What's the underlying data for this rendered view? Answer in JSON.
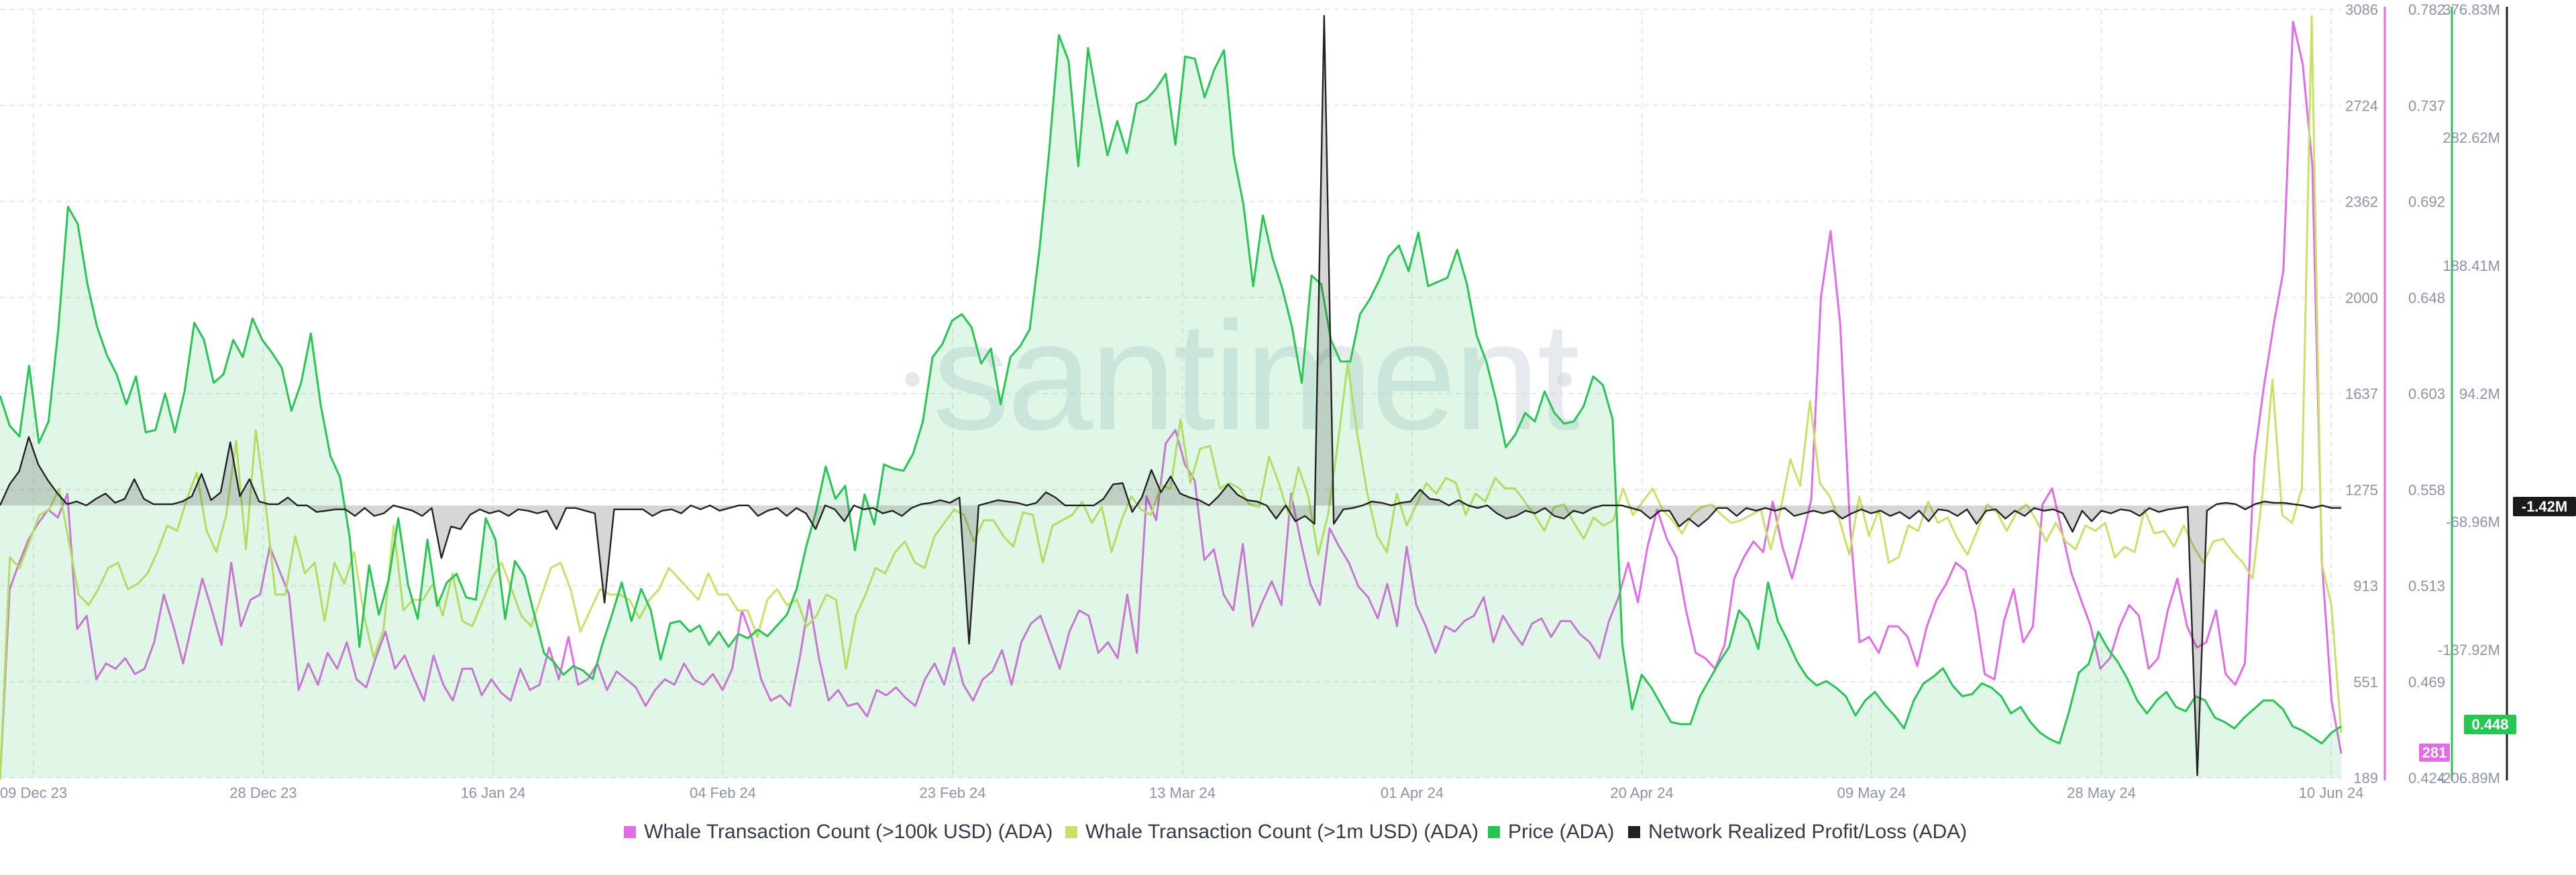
{
  "watermark": "santiment",
  "badges": {
    "whale100k": "281",
    "price": "0.448",
    "pnl": "-1.42M"
  },
  "legend": [
    {
      "label": "Whale Transaction Count (>100k USD) (ADA)",
      "color": "#e26be7"
    },
    {
      "label": "Whale Transaction Count (>1m USD) (ADA)",
      "color": "#c9e265"
    },
    {
      "label": "Price (ADA)",
      "color": "#26c653"
    },
    {
      "label": "Network Realized Profit/Loss (ADA)",
      "color": "#222222"
    }
  ],
  "chart_data": {
    "type": "line",
    "x_tick_labels": [
      "09 Dec 23",
      "28 Dec 23",
      "16 Jan 24",
      "04 Feb 24",
      "23 Feb 24",
      "13 Mar 24",
      "01 Apr 24",
      "20 Apr 24",
      "09 May 24",
      "28 May 24",
      "10 Jun 24"
    ],
    "y_axes": [
      {
        "id": "whale_count",
        "color": "#e26be7",
        "range": [
          189,
          3086
        ],
        "ticks": [
          "3086",
          "2724",
          "2362",
          "2000",
          "1637",
          "1275",
          "913",
          "551",
          "189"
        ]
      },
      {
        "id": "price",
        "color": "#26c653",
        "range": [
          0.424,
          0.782
        ],
        "ticks": [
          "0.782",
          "0.737",
          "0.692",
          "0.648",
          "0.603",
          "0.558",
          "0.513",
          "0.469",
          "0.424"
        ]
      },
      {
        "id": "pnl",
        "color": "#222222",
        "range": [
          -206.89,
          376.83
        ],
        "unit": "M",
        "ticks": [
          "376.83M",
          "282.62M",
          "188.41M",
          "94.2M",
          "-68.96M",
          "-137.92M",
          "-206.89M"
        ]
      }
    ],
    "series": [
      {
        "name": "Whale Transaction Count (>100k USD) (ADA)",
        "axis": "whale_count",
        "color": "#e26be7",
        "values": [
          180,
          900,
          1000,
          1090,
          1150,
          1200,
          1170,
          1260,
          750,
          800,
          560,
          620,
          600,
          640,
          580,
          600,
          700,
          880,
          760,
          620,
          780,
          940,
          820,
          690,
          1000,
          760,
          860,
          880,
          1060,
          970,
          880,
          520,
          620,
          540,
          660,
          600,
          700,
          560,
          530,
          640,
          740,
          600,
          650,
          560,
          480,
          650,
          540,
          480,
          600,
          600,
          500,
          560,
          510,
          480,
          600,
          520,
          540,
          680,
          560,
          720,
          540,
          560,
          620,
          520,
          590,
          560,
          530,
          460,
          520,
          560,
          540,
          620,
          560,
          540,
          580,
          520,
          600,
          820,
          720,
          560,
          480,
          500,
          460,
          640,
          860,
          640,
          480,
          520,
          460,
          470,
          420,
          520,
          500,
          530,
          490,
          460,
          560,
          620,
          540,
          680,
          540,
          480,
          560,
          590,
          670,
          540,
          700,
          770,
          800,
          700,
          600,
          740,
          820,
          800,
          660,
          700,
          640,
          880,
          660,
          1250,
          1160,
          1450,
          1500,
          1370,
          1310,
          1010,
          1050,
          880,
          820,
          1070,
          760,
          850,
          930,
          840,
          1260,
          1080,
          920,
          840,
          1130,
          1060,
          1000,
          910,
          870,
          790,
          920,
          760,
          1060,
          840,
          760,
          660,
          760,
          740,
          780,
          800,
          870,
          700,
          800,
          740,
          690,
          770,
          790,
          720,
          780,
          780,
          730,
          700,
          640,
          780,
          870,
          1000,
          850,
          1060,
          1200,
          1090,
          1020,
          820,
          660,
          640,
          600,
          690,
          940,
          1020,
          1080,
          1040,
          1230,
          1060,
          940,
          1080,
          1240,
          2000,
          2250,
          1900,
          1150,
          700,
          720,
          660,
          760,
          760,
          720,
          610,
          760,
          860,
          920,
          1000,
          970,
          820,
          580,
          560,
          780,
          900,
          700,
          760,
          1220,
          1280,
          1120,
          960,
          860,
          760,
          600,
          640,
          760,
          840,
          800,
          600,
          640,
          820,
          940,
          760,
          680,
          700,
          820,
          580,
          540,
          620,
          1400,
          1670,
          1900,
          2100,
          3040,
          2880,
          2500,
          1000,
          480,
          280
        ],
        "tag": "whale100k"
      },
      {
        "name": "Whale Transaction Count (>1m USD) (ADA)",
        "axis": "whale_count",
        "color": "#c9e265",
        "values": [
          180,
          1020,
          980,
          1080,
          1180,
          1200,
          1280,
          1080,
          880,
          840,
          900,
          980,
          1000,
          900,
          920,
          960,
          1040,
          1140,
          1120,
          1240,
          1340,
          1120,
          1040,
          1180,
          1460,
          1050,
          1500,
          1220,
          880,
          880,
          1100,
          960,
          1000,
          780,
          1000,
          920,
          1040,
          800,
          640,
          750,
          1140,
          820,
          860,
          860,
          920,
          800,
          960,
          780,
          760,
          850,
          940,
          1000,
          900,
          800,
          760,
          870,
          980,
          1000,
          900,
          740,
          820,
          900,
          880,
          880,
          860,
          790,
          860,
          900,
          980,
          940,
          900,
          860,
          960,
          880,
          880,
          820,
          820,
          720,
          860,
          900,
          840,
          860,
          760,
          800,
          880,
          860,
          600,
          800,
          880,
          980,
          960,
          1040,
          1080,
          1000,
          980,
          1100,
          1150,
          1200,
          1180,
          1080,
          1160,
          1160,
          1100,
          1060,
          1190,
          1180,
          1000,
          1140,
          1160,
          1180,
          1230,
          1150,
          1210,
          1040,
          1160,
          1250,
          1200,
          1180,
          1290,
          1280,
          1540,
          1300,
          1430,
          1440,
          1280,
          1300,
          1280,
          1220,
          1210,
          1400,
          1300,
          1180,
          1360,
          1250,
          1030,
          1180,
          1450,
          1750,
          1480,
          1260,
          1100,
          1040,
          1260,
          1140,
          1220,
          1300,
          1260,
          1320,
          1300,
          1180,
          1260,
          1230,
          1320,
          1280,
          1280,
          1230,
          1180,
          1120,
          1210,
          1220,
          1150,
          1090,
          1170,
          1140,
          1160,
          1280,
          1180,
          1230,
          1280,
          1200,
          1160,
          1110,
          1180,
          1210,
          1220,
          1180,
          1150,
          1160,
          1180,
          1200,
          1050,
          1200,
          1390,
          1290,
          1610,
          1300,
          1250,
          1160,
          1030,
          1250,
          1100,
          1200,
          1000,
          1020,
          1140,
          1120,
          1230,
          1150,
          1170,
          1090,
          1030,
          1120,
          1220,
          1190,
          1120,
          1190,
          1220,
          1160,
          1080,
          1150,
          1080,
          1050,
          1140,
          1120,
          1150,
          1020,
          1060,
          1040,
          1200,
          1110,
          1120,
          1060,
          1140,
          1060,
          1000,
          1080,
          1090,
          1040,
          1000,
          940,
          1260,
          1690,
          1180,
          1150,
          1280,
          3060,
          1000,
          840,
          360
        ]
      },
      {
        "name": "Price (ADA)",
        "axis": "price",
        "color": "#26c653",
        "fill": true,
        "values": [
          0.602,
          0.588,
          0.583,
          0.616,
          0.58,
          0.59,
          0.633,
          0.69,
          0.682,
          0.654,
          0.634,
          0.621,
          0.612,
          0.598,
          0.611,
          0.585,
          0.586,
          0.603,
          0.585,
          0.604,
          0.636,
          0.628,
          0.608,
          0.612,
          0.628,
          0.62,
          0.638,
          0.628,
          0.622,
          0.615,
          0.595,
          0.608,
          0.631,
          0.598,
          0.574,
          0.564,
          0.536,
          0.485,
          0.523,
          0.5,
          0.516,
          0.545,
          0.514,
          0.498,
          0.535,
          0.504,
          0.515,
          0.519,
          0.508,
          0.507,
          0.545,
          0.535,
          0.498,
          0.525,
          0.518,
          0.5,
          0.482,
          0.478,
          0.472,
          0.476,
          0.474,
          0.47,
          0.486,
          0.5,
          0.515,
          0.497,
          0.512,
          0.502,
          0.479,
          0.496,
          0.497,
          0.492,
          0.495,
          0.486,
          0.492,
          0.485,
          0.491,
          0.489,
          0.493,
          0.49,
          0.495,
          0.5,
          0.512,
          0.532,
          0.548,
          0.569,
          0.554,
          0.56,
          0.53,
          0.556,
          0.542,
          0.57,
          0.568,
          0.567,
          0.575,
          0.59,
          0.62,
          0.626,
          0.637,
          0.64,
          0.634,
          0.617,
          0.624,
          0.598,
          0.62,
          0.625,
          0.633,
          0.67,
          0.716,
          0.77,
          0.758,
          0.709,
          0.764,
          0.738,
          0.714,
          0.73,
          0.715,
          0.738,
          0.74,
          0.745,
          0.752,
          0.719,
          0.76,
          0.759,
          0.741,
          0.754,
          0.763,
          0.714,
          0.691,
          0.653,
          0.686,
          0.666,
          0.652,
          0.634,
          0.608,
          0.658,
          0.654,
          0.628,
          0.618,
          0.618,
          0.64,
          0.647,
          0.656,
          0.667,
          0.672,
          0.66,
          0.678,
          0.653,
          0.655,
          0.657,
          0.67,
          0.654,
          0.63,
          0.618,
          0.6,
          0.578,
          0.584,
          0.594,
          0.59,
          0.604,
          0.594,
          0.589,
          0.59,
          0.597,
          0.611,
          0.607,
          0.591,
          0.486,
          0.456,
          0.472,
          0.466,
          0.458,
          0.45,
          0.449,
          0.449,
          0.462,
          0.47,
          0.478,
          0.485,
          0.502,
          0.497,
          0.484,
          0.515,
          0.497,
          0.488,
          0.478,
          0.471,
          0.467,
          0.469,
          0.466,
          0.462,
          0.453,
          0.46,
          0.464,
          0.458,
          0.453,
          0.447,
          0.46,
          0.468,
          0.471,
          0.475,
          0.467,
          0.462,
          0.463,
          0.468,
          0.466,
          0.462,
          0.454,
          0.457,
          0.45,
          0.445,
          0.442,
          0.44,
          0.455,
          0.473,
          0.477,
          0.492,
          0.484,
          0.478,
          0.47,
          0.46,
          0.454,
          0.46,
          0.464,
          0.457,
          0.455,
          0.462,
          0.46,
          0.452,
          0.45,
          0.447,
          0.452,
          0.456,
          0.46,
          0.46,
          0.456,
          0.448,
          0.446,
          0.443,
          0.44,
          0.445,
          0.448
        ],
        "tag": "price"
      },
      {
        "name": "Network Realized Profit/Loss (ADA)",
        "axis": "pnl",
        "color": "#222222",
        "fill": true,
        "values": [
          0,
          16,
          26,
          52,
          31,
          19,
          9,
          1,
          3,
          0,
          5,
          9,
          2,
          5,
          20,
          5,
          1,
          1,
          1,
          3,
          7,
          24,
          4,
          10,
          48,
          7,
          20,
          3,
          1,
          1,
          6,
          0,
          0,
          -5,
          -4,
          -3,
          -3,
          -8,
          -2,
          -8,
          -6,
          0,
          -2,
          -4,
          -8,
          -2,
          -40,
          -16,
          -18,
          -7,
          -3,
          -6,
          -4,
          -8,
          -3,
          -4,
          -6,
          -4,
          -18,
          -2,
          -2,
          -4,
          -6,
          -74,
          -3,
          -3,
          -3,
          -3,
          -8,
          -4,
          -3,
          -6,
          0,
          -3,
          0,
          -4,
          -2,
          0,
          0,
          -8,
          -4,
          -2,
          -8,
          -2,
          -6,
          -18,
          0,
          -3,
          -12,
          0,
          -3,
          -2,
          -6,
          -4,
          -8,
          -2,
          1,
          2,
          4,
          2,
          6,
          -105,
          0,
          2,
          4,
          3,
          2,
          0,
          2,
          10,
          6,
          0,
          0,
          0,
          0,
          5,
          16,
          17,
          -5,
          6,
          27,
          10,
          22,
          9,
          6,
          4,
          0,
          7,
          16,
          8,
          4,
          3,
          0,
          -10,
          0,
          -12,
          -8,
          -14,
          372,
          -14,
          -3,
          -2,
          0,
          3,
          2,
          0,
          2,
          3,
          12,
          5,
          4,
          0,
          4,
          0,
          -2,
          0,
          -6,
          -10,
          -8,
          -4,
          -6,
          -2,
          -8,
          -10,
          -4,
          -6,
          -2,
          0,
          0,
          0,
          -2,
          -4,
          -10,
          -4,
          -4,
          -16,
          -10,
          -16,
          -10,
          -2,
          -2,
          -8,
          -2,
          -4,
          -2,
          -4,
          -2,
          -8,
          -6,
          -4,
          -6,
          -4,
          -10,
          -6,
          -3,
          -6,
          -4,
          -8,
          -5,
          -10,
          -4,
          -12,
          -3,
          -4,
          -8,
          -3,
          -14,
          -4,
          -3,
          -10,
          -4,
          -8,
          -2,
          -4,
          -3,
          -6,
          -20,
          -4,
          -12,
          -4,
          -6,
          -3,
          -4,
          -8,
          -2,
          -5,
          -3,
          -2,
          -1,
          -205,
          -4,
          1,
          2,
          1,
          -3,
          1,
          3,
          2,
          2,
          1,
          0,
          -2,
          0,
          -2,
          -2
        ],
        "tag": "pnl"
      }
    ]
  }
}
